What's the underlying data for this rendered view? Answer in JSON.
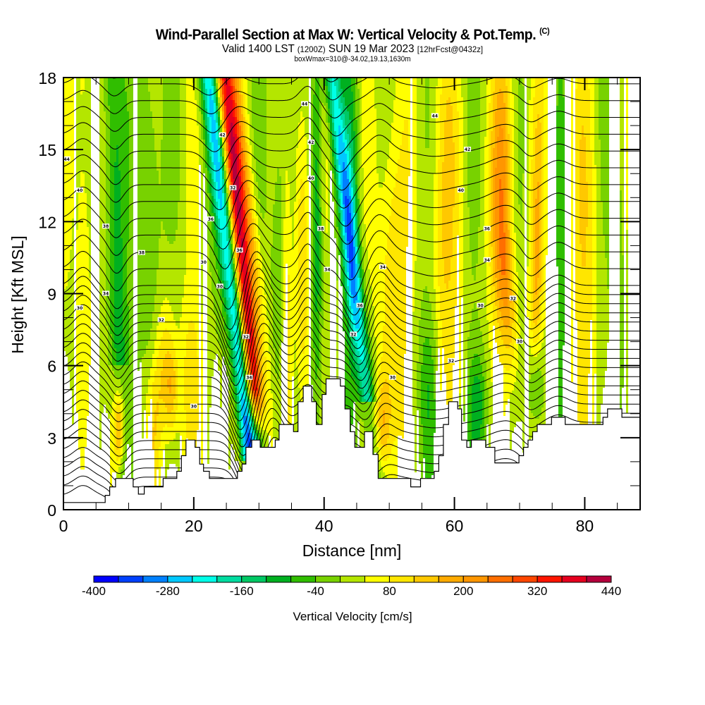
{
  "header": {
    "title": "Wind-Parallel Section at Max W: Vertical Velocity & Pot.Temp.",
    "copyright": "(C)",
    "valid_prefix": "Valid 1400 LST",
    "valid_utc": "(1200Z)",
    "valid_date": "SUN 19 Mar 2023",
    "forecast": "[12hrFcst@0432z]",
    "box_info": "boxWmax=310@-34.02,19.13,1630m"
  },
  "chart_data": {
    "type": "heatmap",
    "title": "Wind-Parallel Section at Max W: Vertical Velocity & Pot.Temp.",
    "xlabel": "Distance [nm]",
    "ylabel": "Height [Kft MSL]",
    "xlim": [
      0,
      88.5
    ],
    "ylim": [
      0,
      18
    ],
    "x_ticks": [
      "0",
      "20",
      "40",
      "60",
      "80"
    ],
    "x_tick_values": [
      0,
      20,
      40,
      60,
      80
    ],
    "x_minor_step": 5,
    "y_ticks": [
      "0",
      "3",
      "6",
      "9",
      "12",
      "15",
      "18"
    ],
    "y_tick_values": [
      0,
      3,
      6,
      9,
      12,
      15,
      18
    ],
    "y_minor_step": 1,
    "colorbar": {
      "title": "Vertical Velocity [cm/s]",
      "min": -400,
      "max": 440,
      "step": 40,
      "tick_labels": [
        "-400",
        "-280",
        "-160",
        "-40",
        "80",
        "200",
        "320",
        "440"
      ],
      "tick_values": [
        -400,
        -280,
        -160,
        -40,
        80,
        200,
        320,
        440
      ],
      "colors": [
        "#0000ff",
        "#0040ff",
        "#0080ff",
        "#00c8ff",
        "#00ffe8",
        "#00dca0",
        "#00c864",
        "#00b020",
        "#30be00",
        "#78d200",
        "#b4e600",
        "#ffff00",
        "#ffe600",
        "#ffc800",
        "#ffaa00",
        "#ff9600",
        "#ff6e00",
        "#ff4600",
        "#ff1400",
        "#e6001e",
        "#b4003c"
      ]
    },
    "features": [
      {
        "name": "updraft-core",
        "x_top": 24.5,
        "y_top": 18,
        "x_bot": 29,
        "y_bot": 5,
        "peak_w": 400
      },
      {
        "name": "downdraft-core",
        "x_top": 22.5,
        "y_top": 18,
        "x_bot": 28.5,
        "y_bot": 2.5,
        "peak_w": -380
      },
      {
        "name": "downdraft-east",
        "x_top": 40,
        "y_top": 18,
        "x_bot": 46.5,
        "y_bot": 5,
        "peak_w": -260
      },
      {
        "name": "updraft-east",
        "x_top": 67.5,
        "y_top": 17,
        "x_bot": 69,
        "y_bot": 8,
        "peak_w": 180
      }
    ],
    "theta_contour_labels": [
      "44",
      "42",
      "40",
      "38",
      "36",
      "34",
      "32",
      "30"
    ],
    "theta_contour_step": 1,
    "terrain_profile_kft": [
      [
        0,
        0.3
      ],
      [
        6.4,
        0.3
      ],
      [
        6.4,
        0.6
      ],
      [
        7.1,
        0.6
      ],
      [
        7.1,
        0.95
      ],
      [
        8,
        0.95
      ],
      [
        8,
        1.3
      ],
      [
        10.7,
        1.3
      ],
      [
        10.7,
        0.95
      ],
      [
        11.5,
        0.95
      ],
      [
        11.5,
        0.65
      ],
      [
        12.4,
        0.65
      ],
      [
        12.4,
        0.95
      ],
      [
        15.3,
        0.95
      ],
      [
        15.3,
        1.3
      ],
      [
        17.4,
        1.3
      ],
      [
        17.4,
        1.6
      ],
      [
        18.1,
        1.6
      ],
      [
        18.1,
        2.25
      ],
      [
        18.8,
        2.25
      ],
      [
        18.8,
        2.9
      ],
      [
        20.2,
        2.9
      ],
      [
        20.2,
        2.6
      ],
      [
        20.9,
        2.6
      ],
      [
        20.9,
        1.9
      ],
      [
        21.5,
        1.9
      ],
      [
        21.5,
        1.6
      ],
      [
        22.4,
        1.6
      ],
      [
        22.4,
        1.3
      ],
      [
        26.7,
        1.3
      ],
      [
        26.7,
        1.6
      ],
      [
        27.4,
        1.6
      ],
      [
        27.4,
        1.9
      ],
      [
        28,
        1.9
      ],
      [
        28,
        2.6
      ],
      [
        28.9,
        2.6
      ],
      [
        28.9,
        2.9
      ],
      [
        30.2,
        2.9
      ],
      [
        30.2,
        2.6
      ],
      [
        32.5,
        2.6
      ],
      [
        32.5,
        2.9
      ],
      [
        33.1,
        2.9
      ],
      [
        33.1,
        3.55
      ],
      [
        35.3,
        3.55
      ],
      [
        35.3,
        3.25
      ],
      [
        36,
        3.25
      ],
      [
        36,
        4.5
      ],
      [
        36.8,
        4.5
      ],
      [
        36.8,
        5.15
      ],
      [
        38.1,
        5.15
      ],
      [
        38.1,
        4.5
      ],
      [
        38.8,
        4.5
      ],
      [
        38.8,
        3.55
      ],
      [
        39.7,
        3.55
      ],
      [
        39.7,
        4.8
      ],
      [
        40.3,
        4.8
      ],
      [
        40.3,
        5.45
      ],
      [
        42.5,
        5.45
      ],
      [
        42.5,
        5.15
      ],
      [
        43.2,
        5.15
      ],
      [
        43.2,
        4.2
      ],
      [
        44,
        4.2
      ],
      [
        44,
        3.25
      ],
      [
        44.7,
        3.25
      ],
      [
        44.7,
        2.6
      ],
      [
        46.2,
        2.6
      ],
      [
        46.2,
        3.25
      ],
      [
        47.5,
        3.25
      ],
      [
        47.5,
        2.3
      ],
      [
        48.3,
        2.3
      ],
      [
        48.3,
        1.3
      ],
      [
        53.3,
        1.3
      ],
      [
        53.3,
        0.95
      ],
      [
        54.8,
        0.95
      ],
      [
        54.8,
        1.3
      ],
      [
        56.9,
        1.3
      ],
      [
        56.9,
        1.6
      ],
      [
        57.6,
        1.6
      ],
      [
        57.6,
        2.25
      ],
      [
        58.3,
        2.25
      ],
      [
        58.3,
        3.55
      ],
      [
        59.1,
        3.55
      ],
      [
        59.1,
        4.5
      ],
      [
        60.5,
        4.5
      ],
      [
        60.5,
        4.2
      ],
      [
        61.1,
        4.2
      ],
      [
        61.1,
        2.9
      ],
      [
        61.9,
        2.9
      ],
      [
        61.9,
        2.6
      ],
      [
        62.6,
        2.6
      ],
      [
        62.6,
        2.9
      ],
      [
        64.8,
        2.9
      ],
      [
        64.8,
        2.6
      ],
      [
        66.2,
        2.6
      ],
      [
        66.2,
        1.95
      ],
      [
        69.9,
        1.95
      ],
      [
        69.9,
        2.25
      ],
      [
        70.6,
        2.25
      ],
      [
        70.6,
        2.6
      ],
      [
        71.3,
        2.6
      ],
      [
        71.3,
        2.9
      ],
      [
        72,
        2.9
      ],
      [
        72,
        3.25
      ],
      [
        72.7,
        3.25
      ],
      [
        72.7,
        3.55
      ],
      [
        74.9,
        3.55
      ],
      [
        74.9,
        3.85
      ],
      [
        77,
        3.85
      ],
      [
        77,
        3.55
      ],
      [
        82.8,
        3.55
      ],
      [
        82.8,
        3.85
      ],
      [
        83.5,
        3.85
      ],
      [
        83.5,
        4.2
      ],
      [
        85.7,
        4.2
      ],
      [
        85.7,
        3.85
      ],
      [
        88.5,
        3.85
      ]
    ]
  }
}
